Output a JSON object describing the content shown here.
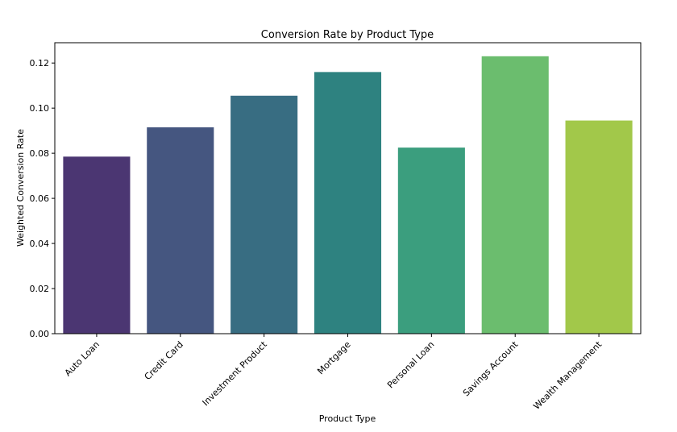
{
  "chart_data": {
    "type": "bar",
    "title": "Conversion Rate by Product Type",
    "xlabel": "Product Type",
    "ylabel": "Weighted Conversion Rate",
    "categories": [
      "Auto Loan",
      "Credit Card",
      "Investment Product",
      "Mortgage",
      "Personal Loan",
      "Savings Account",
      "Wealth Management"
    ],
    "values": [
      0.0785,
      0.0915,
      0.1055,
      0.116,
      0.0825,
      0.123,
      0.0945
    ],
    "colors": [
      "#482878",
      "#3e4989",
      "#31688e",
      "#26828e",
      "#35b779",
      "#6ece58",
      "#b5de2b"
    ],
    "bar_colors_rendered": [
      "#4b3672",
      "#455680",
      "#386d82",
      "#2e8280",
      "#3b9e7e",
      "#6bbd6e",
      "#a2c84a"
    ],
    "ylim": [
      0,
      0.129
    ],
    "yticks": [
      "0.00",
      "0.02",
      "0.04",
      "0.06",
      "0.08",
      "0.10",
      "0.12"
    ],
    "ytick_values": [
      0,
      0.02,
      0.04,
      0.06,
      0.08,
      0.1,
      0.12
    ],
    "grid": false,
    "legend": "none"
  }
}
